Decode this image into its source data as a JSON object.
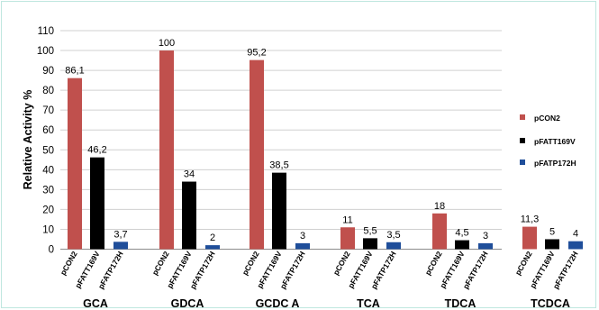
{
  "chart_data": {
    "type": "bar",
    "ylabel": "Relative Activity %",
    "ylim": [
      0,
      110
    ],
    "yticks": [
      "0",
      "10",
      "20",
      "30",
      "40",
      "50",
      "60",
      "70",
      "80",
      "90",
      "100",
      "110"
    ],
    "grid": true,
    "legend_position": "right",
    "categories": [
      "GCA",
      "GDCA",
      "GCDC A",
      "TCA",
      "TDCA",
      "TCDCA"
    ],
    "series": [
      {
        "name": "pCON2",
        "color": "#c0504d",
        "values": [
          86.1,
          100,
          95.2,
          11,
          18,
          11.3
        ],
        "labels": [
          "86,1",
          "100",
          "95,2",
          "11",
          "18",
          "11,3"
        ]
      },
      {
        "name": "pFATT169V",
        "color": "#000000",
        "values": [
          46.2,
          34,
          38.5,
          5.5,
          4.5,
          5
        ],
        "labels": [
          "46,2",
          "34",
          "38,5",
          "5,5",
          "4,5",
          "5"
        ]
      },
      {
        "name": "pFATP172H",
        "color": "#1f4e9a",
        "values": [
          3.7,
          2,
          3,
          3.5,
          3,
          4
        ],
        "labels": [
          "3,7",
          "2",
          "3",
          "3,5",
          "3",
          "4"
        ]
      }
    ]
  }
}
